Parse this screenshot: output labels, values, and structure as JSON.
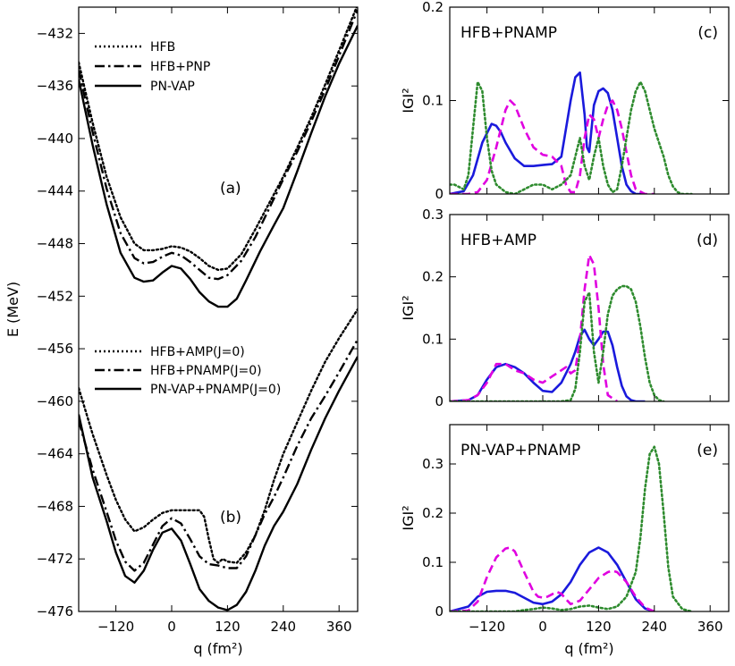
{
  "chart_data": [
    {
      "id": "a",
      "type": "line",
      "panel_label": "(a)",
      "ylabel": "E (MeV)",
      "ylim": [
        -476,
        -430
      ],
      "yticks": [
        -432,
        -436,
        -440,
        -444,
        -448,
        -452,
        -456,
        -460,
        -464,
        -468,
        -472,
        -476
      ],
      "xlim": [
        -200,
        400
      ],
      "xticks": [
        -120,
        0,
        120,
        240,
        360
      ],
      "legend_position": "top-left",
      "series": [
        {
          "name": "HFB",
          "style": "dotted",
          "color": "#000000",
          "x": [
            -200,
            -170,
            -140,
            -110,
            -80,
            -60,
            -40,
            -20,
            0,
            20,
            40,
            60,
            80,
            100,
            120,
            150,
            180,
            210,
            240,
            270,
            300,
            330,
            360,
            400
          ],
          "y": [
            -434.2,
            -438.8,
            -442.9,
            -446.0,
            -448.0,
            -448.5,
            -448.5,
            -448.4,
            -448.2,
            -448.3,
            -448.6,
            -449.1,
            -449.7,
            -450.0,
            -449.9,
            -448.8,
            -446.9,
            -444.9,
            -442.9,
            -440.7,
            -438.4,
            -435.9,
            -433.3,
            -429.8
          ]
        },
        {
          "name": "HFB+PNP",
          "style": "dashdot",
          "color": "#000000",
          "x": [
            -200,
            -170,
            -140,
            -110,
            -80,
            -60,
            -40,
            -20,
            0,
            20,
            40,
            60,
            80,
            100,
            120,
            150,
            180,
            210,
            240,
            270,
            300,
            330,
            360,
            400
          ],
          "y": [
            -434.8,
            -439.5,
            -443.8,
            -447.2,
            -449.1,
            -449.5,
            -449.4,
            -449.0,
            -448.7,
            -448.9,
            -449.4,
            -450.0,
            -450.6,
            -450.7,
            -450.4,
            -449.3,
            -447.5,
            -445.3,
            -443.1,
            -441.0,
            -438.7,
            -436.3,
            -433.7,
            -430.2
          ]
        },
        {
          "name": "PN-VAP",
          "style": "solid",
          "color": "#000000",
          "x": [
            -200,
            -170,
            -140,
            -110,
            -80,
            -60,
            -40,
            -20,
            0,
            20,
            40,
            60,
            80,
            100,
            120,
            140,
            160,
            190,
            220,
            240,
            270,
            300,
            330,
            360,
            400
          ],
          "y": [
            -435.5,
            -440.5,
            -445.0,
            -448.7,
            -450.6,
            -450.9,
            -450.8,
            -450.2,
            -449.7,
            -449.9,
            -450.7,
            -451.7,
            -452.4,
            -452.8,
            -452.8,
            -452.2,
            -450.8,
            -448.6,
            -446.6,
            -445.3,
            -442.5,
            -439.6,
            -436.8,
            -434.3,
            -431.4
          ]
        }
      ]
    },
    {
      "id": "b",
      "type": "line",
      "panel_label": "(b)",
      "xlabel": "q (fm²)",
      "legend_position": "middle-left",
      "series": [
        {
          "name": "HFB+AMP(J=0)",
          "style": "dotted",
          "color": "#000000",
          "x": [
            -200,
            -170,
            -140,
            -120,
            -100,
            -80,
            -60,
            -40,
            -20,
            0,
            20,
            40,
            60,
            70,
            80,
            90,
            100,
            110,
            120,
            140,
            160,
            180,
            200,
            220,
            240,
            270,
            300,
            330,
            360,
            400
          ],
          "y": [
            -459.0,
            -462.5,
            -465.6,
            -467.5,
            -469.0,
            -469.9,
            -469.6,
            -469.0,
            -468.5,
            -468.3,
            -468.3,
            -468.3,
            -468.3,
            -468.8,
            -470.5,
            -472.0,
            -472.3,
            -472.0,
            -472.2,
            -472.3,
            -471.5,
            -470.2,
            -468.3,
            -466.0,
            -464.0,
            -461.6,
            -459.2,
            -457.0,
            -455.2,
            -453.0
          ]
        },
        {
          "name": "HFB+PNAMP(J=0)",
          "style": "dashdot",
          "color": "#000000",
          "x": [
            -200,
            -170,
            -140,
            -120,
            -100,
            -80,
            -60,
            -40,
            -20,
            0,
            20,
            40,
            60,
            80,
            100,
            120,
            140,
            160,
            180,
            200,
            220,
            240,
            270,
            300,
            330,
            360,
            400
          ],
          "y": [
            -461.5,
            -465.2,
            -468.4,
            -470.6,
            -472.2,
            -472.9,
            -472.3,
            -470.9,
            -469.5,
            -468.9,
            -469.3,
            -470.5,
            -471.8,
            -472.4,
            -472.5,
            -472.7,
            -472.7,
            -471.8,
            -470.2,
            -468.6,
            -467.3,
            -465.8,
            -463.4,
            -461.3,
            -459.6,
            -457.8,
            -455.3
          ]
        },
        {
          "name": "PN-VAP+PNAMP(J=0)",
          "style": "solid",
          "color": "#000000",
          "x": [
            -200,
            -170,
            -140,
            -120,
            -100,
            -80,
            -60,
            -40,
            -20,
            0,
            20,
            40,
            60,
            80,
            100,
            120,
            140,
            160,
            180,
            200,
            220,
            240,
            270,
            300,
            330,
            360,
            400
          ],
          "y": [
            -461.0,
            -465.8,
            -469.1,
            -471.5,
            -473.3,
            -473.8,
            -472.9,
            -471.3,
            -470.0,
            -469.7,
            -470.6,
            -472.4,
            -474.3,
            -475.2,
            -475.7,
            -475.9,
            -475.5,
            -474.5,
            -472.9,
            -471.0,
            -469.5,
            -468.4,
            -466.3,
            -463.7,
            -461.3,
            -459.2,
            -456.6
          ]
        }
      ]
    },
    {
      "id": "c",
      "type": "line",
      "panel_label": "(c)",
      "title": "HFB+PNAMP",
      "ylabel": "IGI²",
      "ylim": [
        0,
        0.2
      ],
      "yticks": [
        "0",
        "0.1",
        "0.2"
      ],
      "xlim": [
        -200,
        400
      ],
      "series": [
        {
          "style": "solid",
          "color": "#1a1adc",
          "x": [
            -200,
            -170,
            -150,
            -130,
            -110,
            -100,
            -90,
            -80,
            -60,
            -40,
            -20,
            0,
            20,
            40,
            60,
            70,
            80,
            90,
            95,
            100,
            105,
            110,
            120,
            130,
            140,
            150,
            160,
            170,
            180,
            190,
            200,
            220
          ],
          "y": [
            0,
            0.003,
            0.02,
            0.055,
            0.075,
            0.073,
            0.066,
            0.055,
            0.038,
            0.03,
            0.03,
            0.031,
            0.032,
            0.04,
            0.1,
            0.125,
            0.13,
            0.085,
            0.05,
            0.045,
            0.07,
            0.095,
            0.11,
            0.113,
            0.108,
            0.09,
            0.06,
            0.03,
            0.01,
            0.003,
            0,
            0
          ]
        },
        {
          "style": "dashed",
          "color": "#e000e0",
          "x": [
            -200,
            -160,
            -140,
            -120,
            -100,
            -80,
            -70,
            -60,
            -40,
            -20,
            0,
            20,
            40,
            50,
            60,
            70,
            80,
            90,
            100,
            110,
            120,
            130,
            140,
            150,
            160,
            170,
            180,
            190,
            200,
            220,
            240
          ],
          "y": [
            0,
            0,
            0.002,
            0.015,
            0.05,
            0.09,
            0.1,
            0.095,
            0.07,
            0.05,
            0.042,
            0.04,
            0.03,
            0.01,
            0.002,
            0.002,
            0.02,
            0.06,
            0.085,
            0.08,
            0.06,
            0.08,
            0.095,
            0.1,
            0.09,
            0.07,
            0.045,
            0.02,
            0.005,
            0,
            0
          ]
        },
        {
          "style": "dotted",
          "color": "#2e8b2e",
          "x": [
            -200,
            -190,
            -170,
            -160,
            -150,
            -140,
            -130,
            -120,
            -110,
            -100,
            -80,
            -60,
            -40,
            -20,
            0,
            20,
            40,
            60,
            70,
            80,
            90,
            100,
            110,
            120,
            130,
            140,
            150,
            160,
            170,
            180,
            190,
            200,
            210,
            220,
            230,
            240,
            250,
            260,
            270,
            280,
            290,
            300,
            320
          ],
          "y": [
            0.01,
            0.01,
            0.005,
            0.02,
            0.07,
            0.12,
            0.11,
            0.06,
            0.025,
            0.01,
            0.002,
            0,
            0.005,
            0.01,
            0.01,
            0.005,
            0.01,
            0.02,
            0.04,
            0.06,
            0.03,
            0.015,
            0.04,
            0.06,
            0.03,
            0.01,
            0.002,
            0.005,
            0.03,
            0.06,
            0.09,
            0.11,
            0.12,
            0.11,
            0.09,
            0.07,
            0.055,
            0.04,
            0.02,
            0.008,
            0.002,
            0,
            0
          ]
        }
      ]
    },
    {
      "id": "d",
      "type": "line",
      "panel_label": "(d)",
      "title": "HFB+AMP",
      "ylabel": "IGI²",
      "ylim": [
        0,
        0.3
      ],
      "yticks": [
        "0",
        "0.1",
        "0.2",
        "0.3"
      ],
      "xlim": [
        -200,
        400
      ],
      "series": [
        {
          "style": "solid",
          "color": "#1a1adc",
          "x": [
            -200,
            -160,
            -140,
            -120,
            -100,
            -80,
            -60,
            -40,
            -20,
            0,
            20,
            40,
            60,
            70,
            80,
            90,
            100,
            110,
            120,
            130,
            140,
            150,
            160,
            170,
            180,
            190,
            200,
            220
          ],
          "y": [
            0,
            0.002,
            0.01,
            0.035,
            0.055,
            0.06,
            0.055,
            0.045,
            0.03,
            0.017,
            0.015,
            0.03,
            0.06,
            0.08,
            0.105,
            0.115,
            0.1,
            0.09,
            0.1,
            0.112,
            0.112,
            0.09,
            0.055,
            0.025,
            0.008,
            0.002,
            0,
            0
          ]
        },
        {
          "style": "dashed",
          "color": "#e000e0",
          "x": [
            -200,
            -160,
            -140,
            -120,
            -100,
            -80,
            -60,
            -40,
            -20,
            0,
            20,
            40,
            50,
            60,
            70,
            80,
            90,
            100,
            110,
            120,
            130,
            140,
            160
          ],
          "y": [
            0,
            0.002,
            0.01,
            0.03,
            0.06,
            0.06,
            0.05,
            0.045,
            0.035,
            0.03,
            0.04,
            0.05,
            0.055,
            0.045,
            0.05,
            0.1,
            0.18,
            0.235,
            0.22,
            0.15,
            0.06,
            0.01,
            0
          ]
        },
        {
          "style": "dotted",
          "color": "#2e8b2e",
          "x": [
            -200,
            40,
            60,
            70,
            80,
            90,
            100,
            110,
            120,
            130,
            140,
            150,
            160,
            170,
            180,
            190,
            200,
            210,
            220,
            230,
            240,
            250,
            260
          ],
          "y": [
            0,
            0,
            0.002,
            0.02,
            0.08,
            0.16,
            0.175,
            0.08,
            0.03,
            0.08,
            0.14,
            0.17,
            0.18,
            0.185,
            0.185,
            0.18,
            0.16,
            0.12,
            0.07,
            0.03,
            0.01,
            0.002,
            0
          ]
        }
      ]
    },
    {
      "id": "e",
      "type": "line",
      "panel_label": "(e)",
      "title": "PN-VAP+PNAMP",
      "ylabel": "IGI²",
      "xlabel": "q (fm²)",
      "ylim": [
        0,
        0.38
      ],
      "yticks": [
        "0",
        "0.1",
        "0.2",
        "0.3"
      ],
      "xlim": [
        -200,
        400
      ],
      "xticks": [
        -120,
        0,
        120,
        240,
        360
      ],
      "series": [
        {
          "style": "solid",
          "color": "#1a1adc",
          "x": [
            -200,
            -160,
            -140,
            -120,
            -100,
            -80,
            -60,
            -40,
            -20,
            0,
            20,
            40,
            60,
            80,
            100,
            120,
            140,
            160,
            180,
            200,
            220,
            240
          ],
          "y": [
            0,
            0.01,
            0.03,
            0.04,
            0.042,
            0.042,
            0.038,
            0.028,
            0.018,
            0.015,
            0.02,
            0.035,
            0.06,
            0.095,
            0.12,
            0.13,
            0.12,
            0.095,
            0.06,
            0.025,
            0.006,
            0
          ]
        },
        {
          "style": "dashed",
          "color": "#e000e0",
          "x": [
            -200,
            -160,
            -140,
            -120,
            -100,
            -80,
            -70,
            -60,
            -40,
            -20,
            -10,
            0,
            10,
            20,
            30,
            40,
            50,
            60,
            80,
            100,
            120,
            140,
            150,
            160,
            180,
            200,
            220,
            240
          ],
          "y": [
            0,
            0.002,
            0.02,
            0.07,
            0.11,
            0.128,
            0.13,
            0.122,
            0.08,
            0.04,
            0.03,
            0.028,
            0.03,
            0.035,
            0.04,
            0.036,
            0.025,
            0.015,
            0.022,
            0.045,
            0.068,
            0.08,
            0.083,
            0.08,
            0.06,
            0.03,
            0.008,
            0
          ]
        },
        {
          "style": "dotted",
          "color": "#2e8b2e",
          "x": [
            -200,
            -60,
            -40,
            -20,
            0,
            20,
            40,
            60,
            80,
            100,
            120,
            140,
            160,
            180,
            200,
            210,
            220,
            230,
            240,
            250,
            260,
            270,
            280,
            300,
            320
          ],
          "y": [
            0,
            0,
            0.003,
            0.005,
            0.008,
            0.006,
            0.003,
            0.005,
            0.01,
            0.012,
            0.008,
            0.005,
            0.01,
            0.03,
            0.08,
            0.15,
            0.25,
            0.32,
            0.335,
            0.3,
            0.2,
            0.09,
            0.03,
            0.005,
            0
          ]
        }
      ]
    }
  ]
}
